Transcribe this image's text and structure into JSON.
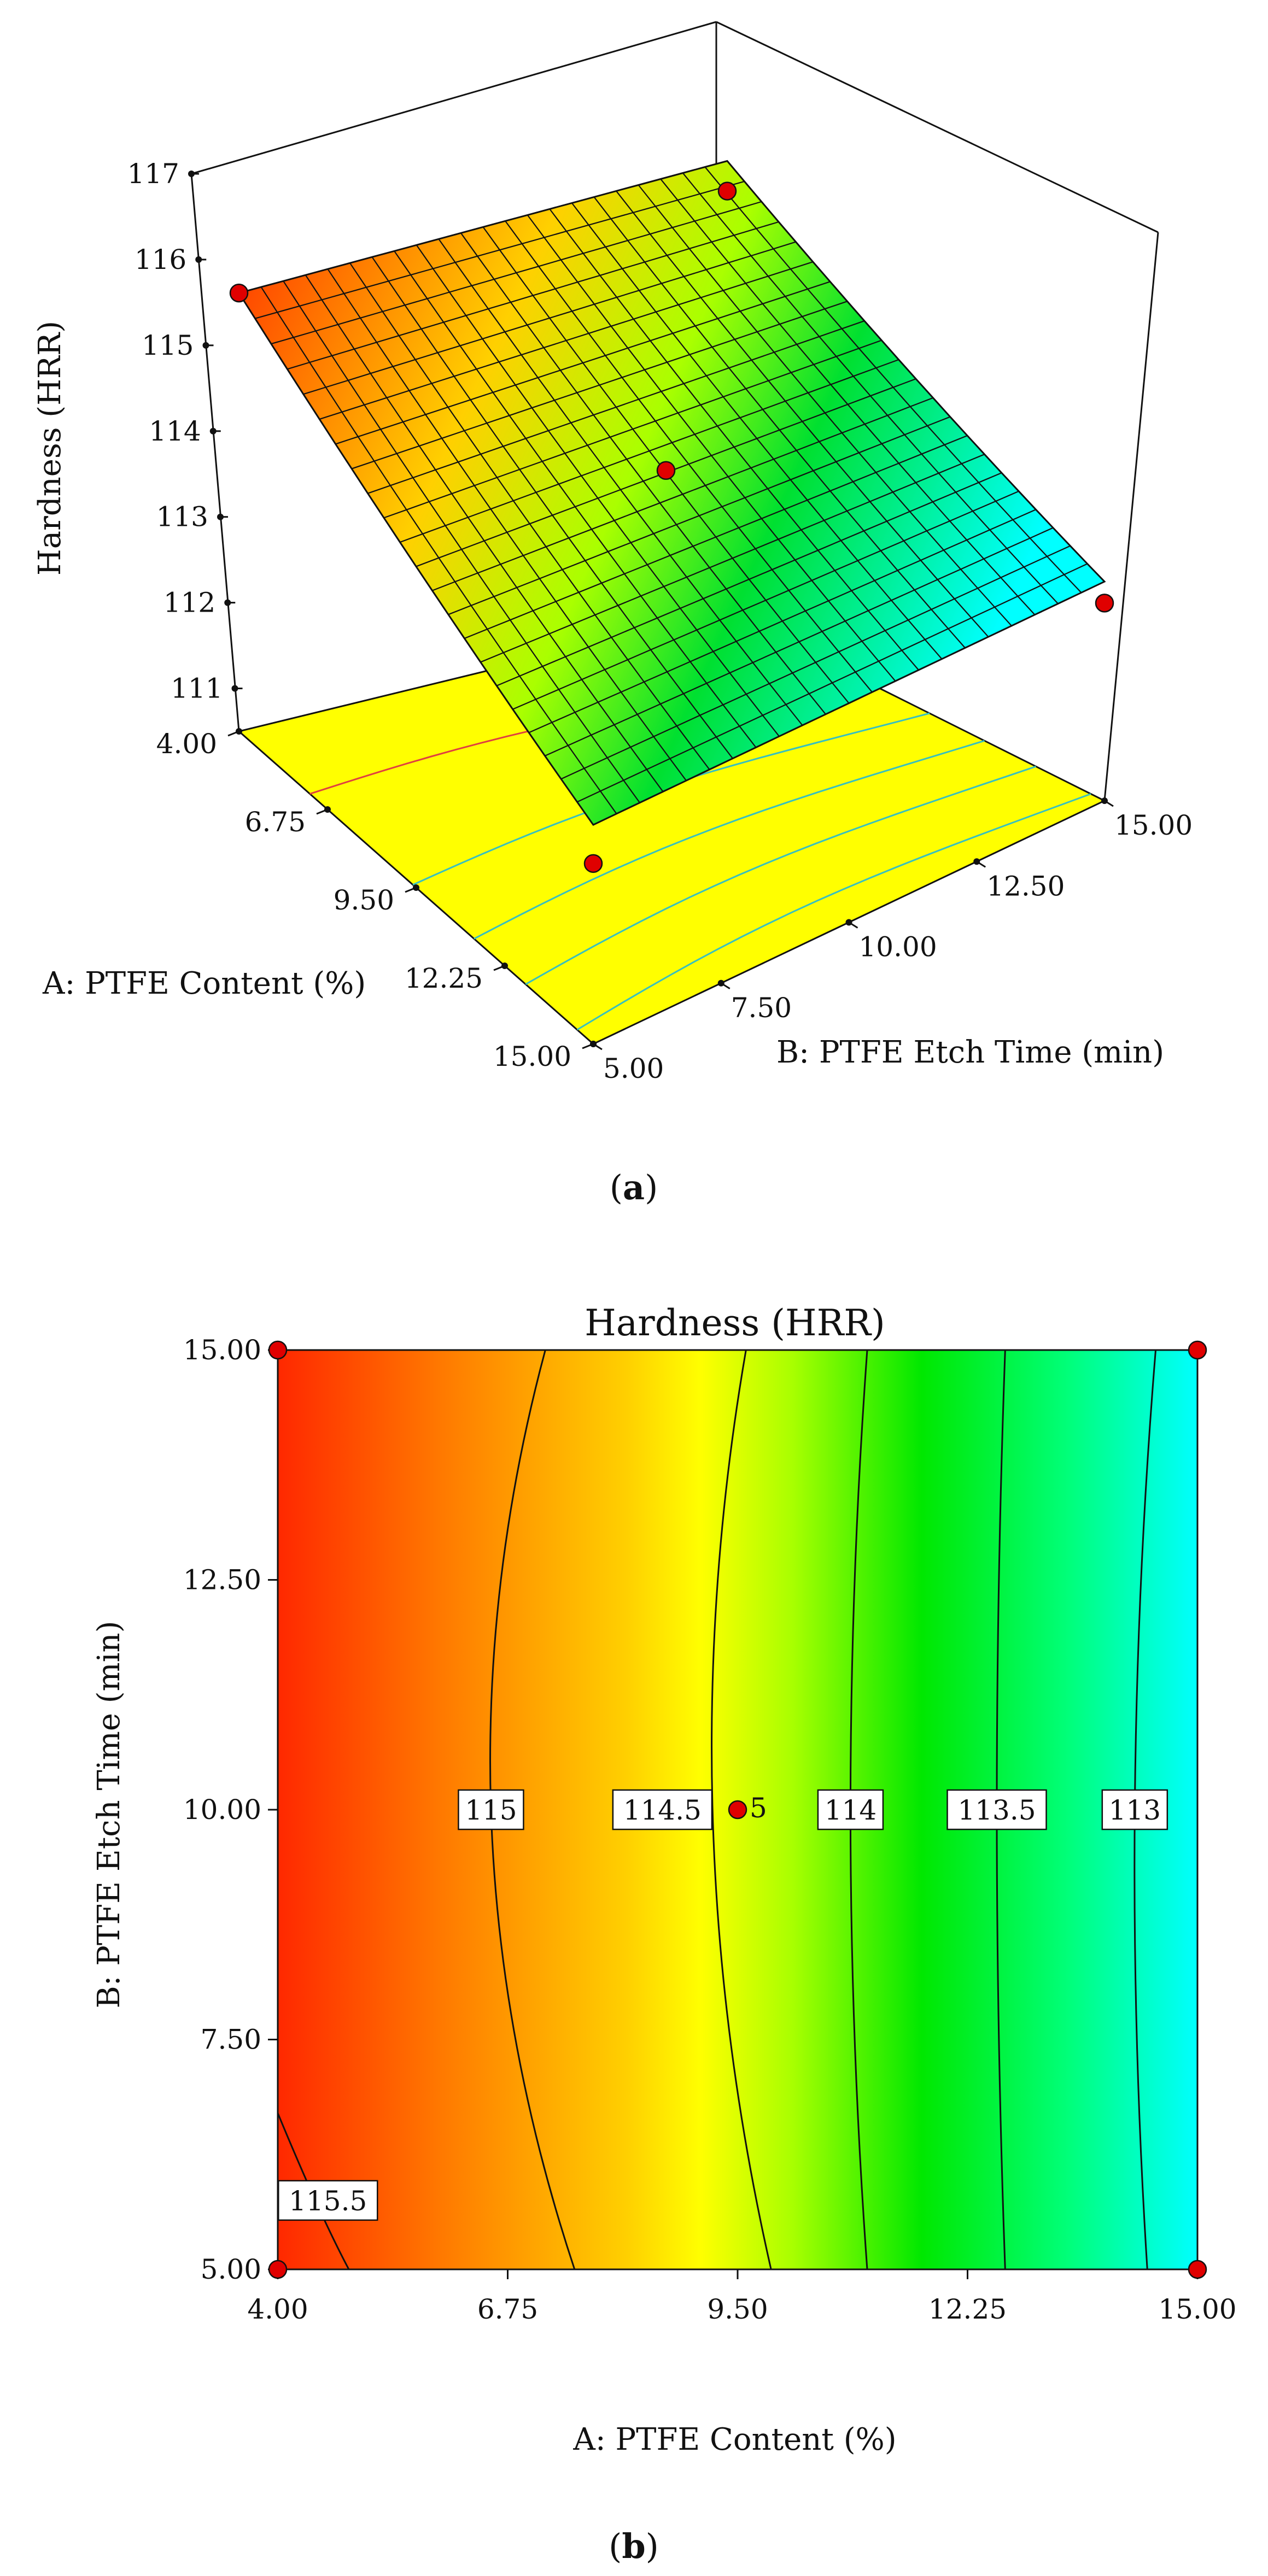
{
  "chart_data": [
    {
      "type": "surface3d",
      "panel_label": "(a)",
      "caption_prefix": "(",
      "caption_letter": "a",
      "caption_suffix": ")",
      "zlabel": "Hardness (HRR)",
      "xlabel": "A: PTFE Content (%)",
      "ylabel": "B: PTFE Etch Time (min)",
      "z_ticks": [
        "117",
        "116",
        "115",
        "114",
        "113",
        "112",
        "111"
      ],
      "a_ticks": [
        "4.00",
        "6.75",
        "9.50",
        "12.25",
        "15.00"
      ],
      "b_ticks": [
        "5.00",
        "7.50",
        "10.00",
        "12.50",
        "15.00"
      ],
      "a_range": [
        4.0,
        15.0
      ],
      "b_range": [
        5.0,
        15.0
      ],
      "z_range": [
        110.5,
        117.0
      ],
      "design_points": [
        {
          "a": 4.0,
          "b": 5.0,
          "z": 115.6
        },
        {
          "a": 4.0,
          "b": 15.0,
          "z": 115.4
        },
        {
          "a": 9.5,
          "b": 10.0,
          "z": 114.3
        },
        {
          "a": 15.0,
          "b": 15.0,
          "z": 112.8
        },
        {
          "a": 15.0,
          "b": 5.0,
          "z": 112.6
        }
      ],
      "colors": {
        "low": "#00ffff",
        "mid_low": "#00ff00",
        "mid": "#ffff00",
        "high": "#ff0000",
        "floor": "#ffff00",
        "point": "#e00000"
      }
    },
    {
      "type": "contour",
      "panel_label": "(b)",
      "caption_prefix": "(",
      "caption_letter": "b",
      "caption_suffix": ")",
      "title": "Hardness (HRR)",
      "xlabel": "A: PTFE Content (%)",
      "ylabel": "B: PTFE Etch Time (min)",
      "x_ticks": [
        "4.00",
        "6.75",
        "9.50",
        "12.25",
        "15.00"
      ],
      "y_ticks": [
        "5.00",
        "7.50",
        "10.00",
        "12.50",
        "15.00"
      ],
      "xlim": [
        4.0,
        15.0
      ],
      "ylim": [
        5.0,
        15.0
      ],
      "contour_levels": [
        {
          "label": "115.5",
          "a_at_b5": 4.85,
          "a_at_b10": null,
          "a_at_b15": null,
          "label_at": [
            4.6,
            5.75
          ]
        },
        {
          "label": "115",
          "a_at_b5": 7.55,
          "a_at_b10": 6.55,
          "a_at_b15": 7.2,
          "label_at": [
            6.55,
            10.0
          ]
        },
        {
          "label": "114.5",
          "a_at_b5": 9.9,
          "a_at_b10": 9.2,
          "a_at_b15": 9.6,
          "label_at": [
            8.6,
            10.0
          ]
        },
        {
          "label": "114",
          "a_at_b5": 11.05,
          "a_at_b10": 10.85,
          "a_at_b15": 11.05,
          "label_at": [
            10.85,
            10.0
          ]
        },
        {
          "label": "113.5",
          "a_at_b5": 12.7,
          "a_at_b10": 12.6,
          "a_at_b15": 12.7,
          "label_at": [
            12.6,
            10.0
          ]
        },
        {
          "label": "113",
          "a_at_b5": 14.4,
          "a_at_b10": 14.25,
          "a_at_b15": 14.5,
          "label_at": [
            14.25,
            10.0
          ]
        }
      ],
      "design_points": [
        {
          "a": 4.0,
          "b": 15.0,
          "label": ""
        },
        {
          "a": 15.0,
          "b": 15.0,
          "label": ""
        },
        {
          "a": 9.5,
          "b": 10.0,
          "label": "5"
        },
        {
          "a": 4.0,
          "b": 5.0,
          "label": ""
        },
        {
          "a": 15.0,
          "b": 5.0,
          "label": ""
        }
      ],
      "colors": {
        "c1": "#ff2000",
        "c2": "#ff8c00",
        "c3": "#ffff00",
        "c4": "#00e000",
        "c5": "#00ff80",
        "c6": "#00ffff",
        "point": "#e00000"
      }
    }
  ]
}
